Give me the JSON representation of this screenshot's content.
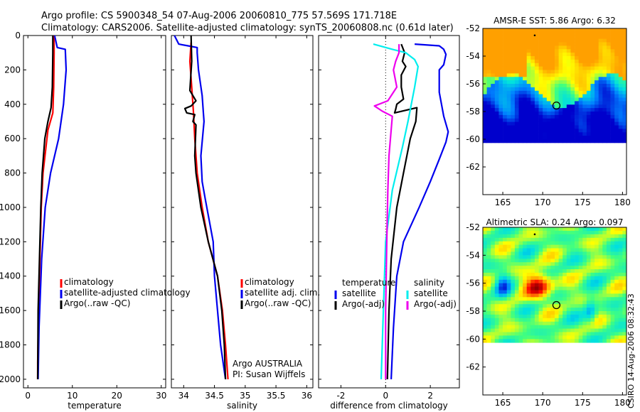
{
  "title": {
    "line1": "Argo profile: CS 5900348_54 07-Aug-2006 20060810_775 57.569S 171.718E",
    "line2": "Climatology: CARS2006. Satellite-adjusted climatology: synTS_20060808.nc (0.61d later)"
  },
  "side_label": "CSIRO 14-Aug-2006 08:32:43",
  "colors": {
    "red": "#ff0000",
    "blue": "#0000ee",
    "black": "#000000",
    "cyan": "#00eeee",
    "magenta": "#ee00ee"
  },
  "chart_data": [
    {
      "type": "line",
      "name": "temperature-panel",
      "xlabel": "temperature",
      "xlim": [
        -1,
        31
      ],
      "ylim": [
        0,
        2050
      ],
      "y_reversed": true,
      "xticks": [
        0,
        10,
        20,
        30
      ],
      "yticks": [
        0,
        200,
        400,
        600,
        800,
        1000,
        1200,
        1400,
        1600,
        1800,
        2000
      ],
      "legend": {
        "entries": [
          "climatology",
          "satellite-adjusted climatology",
          "Argo(..raw -QC)"
        ],
        "placement": "lower-center"
      },
      "series": [
        {
          "name": "climatology",
          "color": "#ff0000",
          "points": [
            [
              5.9,
              0
            ],
            [
              5.9,
              100
            ],
            [
              5.8,
              300
            ],
            [
              5.6,
              450
            ],
            [
              4.5,
              550
            ],
            [
              3.4,
              800
            ],
            [
              3.0,
              1000
            ],
            [
              2.7,
              1300
            ],
            [
              2.4,
              1600
            ],
            [
              2.2,
              1900
            ],
            [
              2.2,
              2000
            ]
          ]
        },
        {
          "name": "satellite-adjusted climatology",
          "color": "#0000ee",
          "points": [
            [
              6.0,
              0
            ],
            [
              6.6,
              70
            ],
            [
              8.4,
              80
            ],
            [
              8.6,
              200
            ],
            [
              8.0,
              400
            ],
            [
              6.9,
              600
            ],
            [
              5.1,
              800
            ],
            [
              3.9,
              1000
            ],
            [
              3.1,
              1300
            ],
            [
              2.5,
              1700
            ],
            [
              2.3,
              2000
            ]
          ]
        },
        {
          "name": "Argo(..raw -QC)",
          "color": "#000000",
          "points": [
            [
              5.6,
              0
            ],
            [
              5.6,
              100
            ],
            [
              5.5,
              300
            ],
            [
              5.2,
              420
            ],
            [
              4.5,
              500
            ],
            [
              3.8,
              600
            ],
            [
              3.2,
              800
            ],
            [
              2.9,
              1000
            ],
            [
              2.6,
              1300
            ],
            [
              2.3,
              1600
            ],
            [
              2.2,
              2000
            ]
          ]
        }
      ]
    },
    {
      "type": "line",
      "name": "salinity-panel",
      "xlabel": "salinity",
      "xlim": [
        33.8,
        36.1
      ],
      "ylim": [
        0,
        2050
      ],
      "y_reversed": true,
      "xticks": [
        34,
        34.5,
        35,
        35.5,
        36
      ],
      "legend": {
        "entries": [
          "climatology",
          "satellite adj. clim.",
          "Argo(..raw -QC)"
        ],
        "placement": "lower-right"
      },
      "annotations": [
        "Argo AUSTRALIA",
        "PI: Susan Wijffels"
      ],
      "series": [
        {
          "name": "climatology",
          "color": "#ff0000",
          "points": [
            [
              34.12,
              40
            ],
            [
              34.1,
              150
            ],
            [
              34.13,
              300
            ],
            [
              34.16,
              450
            ],
            [
              34.18,
              600
            ],
            [
              34.22,
              800
            ],
            [
              34.3,
              1000
            ],
            [
              34.4,
              1200
            ],
            [
              34.55,
              1400
            ],
            [
              34.63,
              1600
            ],
            [
              34.68,
              1800
            ],
            [
              34.72,
              2000
            ]
          ]
        },
        {
          "name": "satellite adj. clim.",
          "color": "#0000ee",
          "points": [
            [
              33.85,
              0
            ],
            [
              33.92,
              50
            ],
            [
              34.07,
              60
            ],
            [
              34.22,
              70
            ],
            [
              34.22,
              100
            ],
            [
              34.24,
              200
            ],
            [
              34.3,
              350
            ],
            [
              34.32,
              450
            ],
            [
              34.33,
              500
            ],
            [
              34.28,
              700
            ],
            [
              34.3,
              850
            ],
            [
              34.35,
              950
            ],
            [
              34.48,
              1200
            ],
            [
              34.5,
              1400
            ],
            [
              34.55,
              1600
            ],
            [
              34.6,
              1800
            ],
            [
              34.68,
              2000
            ]
          ]
        },
        {
          "name": "Argo(..raw -QC)",
          "color": "#000000",
          "points": [
            [
              34.12,
              0
            ],
            [
              34.13,
              150
            ],
            [
              34.1,
              320
            ],
            [
              34.2,
              380
            ],
            [
              34.12,
              410
            ],
            [
              34.02,
              425
            ],
            [
              34.05,
              450
            ],
            [
              34.18,
              460
            ],
            [
              34.15,
              500
            ],
            [
              34.2,
              520
            ],
            [
              34.18,
              700
            ],
            [
              34.2,
              800
            ],
            [
              34.28,
              1000
            ],
            [
              34.4,
              1200
            ],
            [
              34.55,
              1400
            ],
            [
              34.62,
              1600
            ],
            [
              34.66,
              1800
            ],
            [
              34.68,
              2000
            ]
          ]
        }
      ]
    },
    {
      "type": "line",
      "name": "difference-panel",
      "xlabel": "difference from climatology",
      "xlim": [
        -3,
        3.3
      ],
      "ylim": [
        0,
        2050
      ],
      "y_reversed": true,
      "xticks": [
        -2,
        0,
        2
      ],
      "legend": {
        "groups": [
          {
            "title": "temperature",
            "entries": [
              "satellite",
              "Argo(-adj)"
            ]
          },
          {
            "title": "salinity",
            "entries": [
              "satellite",
              "Argo(-adj)"
            ]
          }
        ],
        "placement": "lower-center"
      },
      "series": [
        {
          "name": "temperature satellite",
          "color": "#0000ee",
          "points": [
            [
              1.3,
              50
            ],
            [
              2.4,
              60
            ],
            [
              2.6,
              80
            ],
            [
              2.7,
              110
            ],
            [
              2.6,
              170
            ],
            [
              2.4,
              200
            ],
            [
              2.4,
              260
            ],
            [
              2.4,
              330
            ],
            [
              2.6,
              470
            ],
            [
              2.8,
              560
            ],
            [
              2.7,
              620
            ],
            [
              2.4,
              720
            ],
            [
              2.0,
              850
            ],
            [
              1.5,
              1000
            ],
            [
              0.8,
              1200
            ],
            [
              0.5,
              1400
            ],
            [
              0.35,
              1700
            ],
            [
              0.25,
              2000
            ]
          ]
        },
        {
          "name": "temperature Argo(-adj)",
          "color": "#000000",
          "points": [
            [
              0.7,
              50
            ],
            [
              0.85,
              100
            ],
            [
              0.75,
              150
            ],
            [
              0.9,
              180
            ],
            [
              0.7,
              230
            ],
            [
              0.7,
              300
            ],
            [
              0.8,
              370
            ],
            [
              0.5,
              400
            ],
            [
              0.45,
              430
            ],
            [
              0.4,
              450
            ],
            [
              1.4,
              420
            ],
            [
              1.35,
              500
            ],
            [
              1.1,
              600
            ],
            [
              0.8,
              800
            ],
            [
              0.5,
              1000
            ],
            [
              0.25,
              1300
            ],
            [
              0.15,
              1600
            ],
            [
              0.08,
              2000
            ]
          ]
        },
        {
          "name": "salinity satellite",
          "color": "#00eeee",
          "points": [
            [
              -0.55,
              50
            ],
            [
              0.3,
              80
            ],
            [
              0.9,
              100
            ],
            [
              1.3,
              140
            ],
            [
              1.45,
              180
            ],
            [
              1.3,
              300
            ],
            [
              1.0,
              500
            ],
            [
              0.75,
              650
            ],
            [
              0.3,
              900
            ],
            [
              0.0,
              1200
            ],
            [
              -0.1,
              1600
            ],
            [
              -0.2,
              2000
            ]
          ]
        },
        {
          "name": "salinity Argo(-adj)",
          "color": "#ee00ee",
          "points": [
            [
              0.6,
              50
            ],
            [
              0.6,
              100
            ],
            [
              0.45,
              150
            ],
            [
              0.35,
              200
            ],
            [
              0.5,
              300
            ],
            [
              0.1,
              380
            ],
            [
              -0.5,
              410
            ],
            [
              -0.15,
              440
            ],
            [
              0.3,
              470
            ],
            [
              0.15,
              700
            ],
            [
              0.1,
              900
            ],
            [
              0.05,
              1200
            ],
            [
              0.0,
              1600
            ],
            [
              0.0,
              2000
            ]
          ]
        }
      ]
    },
    {
      "type": "heatmap",
      "name": "sst-map",
      "title": "AMSR-E SST: 5.86 Argo: 6.32",
      "xlim": [
        162.5,
        180.5
      ],
      "ylim": [
        -64,
        -52
      ],
      "xticks": [
        165,
        170,
        175,
        180
      ],
      "yticks": [
        -52,
        -54,
        -56,
        -58,
        -60,
        -62
      ],
      "data_extent_lat": [
        -60.2,
        -52
      ],
      "argo_position": [
        171.718,
        -57.569
      ],
      "marker_small": [
        169,
        -52.5
      ],
      "colormap": [
        "#0000cc",
        "#0080ff",
        "#00e0e0",
        "#40ff80",
        "#ffff00",
        "#ffa000"
      ]
    },
    {
      "type": "heatmap",
      "name": "sla-map",
      "title": "Altimetric SLA: 0.24 Argo: 0.097",
      "xlim": [
        162.5,
        180.5
      ],
      "ylim": [
        -64,
        -52
      ],
      "xticks": [
        165,
        170,
        175,
        180
      ],
      "yticks": [
        -52,
        -54,
        -56,
        -58,
        -60,
        -62
      ],
      "data_extent_lat": [
        -60.2,
        -52
      ],
      "argo_position": [
        171.718,
        -57.569
      ],
      "marker_small": [
        169,
        -52.5
      ],
      "colormap": [
        "#0000cc",
        "#0080ff",
        "#00e0e0",
        "#40ff80",
        "#ffff00",
        "#ffa000",
        "#ff0000",
        "#800000"
      ]
    }
  ]
}
